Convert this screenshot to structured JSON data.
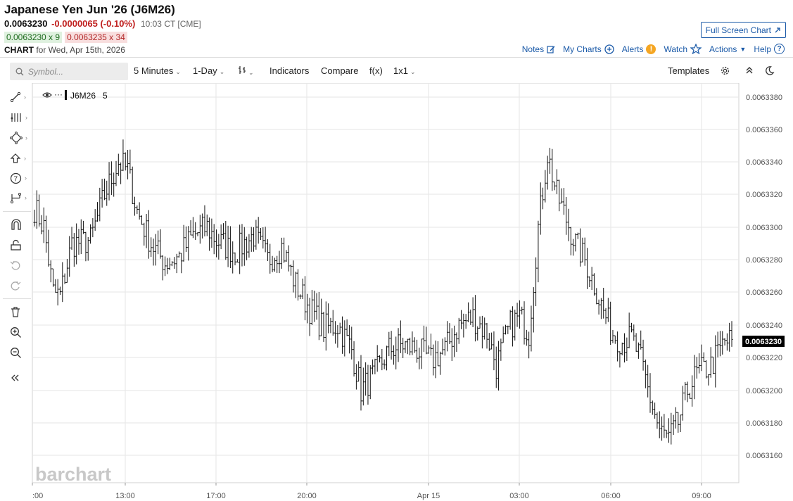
{
  "header": {
    "title": "Japanese Yen Jun '26 (J6M26)",
    "last": "0.0063230",
    "change": "-0.0000065 (-0.10%)",
    "time": "10:03 CT [CME]",
    "bid": "0.0063230 x 9",
    "ask": "0.0063235 x 34",
    "chart_label": "CHART",
    "chart_for": "for Wed, Apr 15th, 2026"
  },
  "actions": {
    "full_screen": "Full Screen Chart",
    "notes": "Notes",
    "my_charts": "My Charts",
    "alerts": "Alerts",
    "watch": "Watch",
    "actions": "Actions",
    "help": "Help"
  },
  "toolbar": {
    "symbol_placeholder": "Symbol...",
    "interval": "5 Minutes",
    "range": "1-Day",
    "indicators": "Indicators",
    "compare": "Compare",
    "fx": "f(x)",
    "layout": "1x1",
    "templates": "Templates"
  },
  "legend": {
    "symbol": "J6M26",
    "interval": "5"
  },
  "watermark": "barchart",
  "colors": {
    "link": "#1b5aa8",
    "negative": "#c0201f",
    "bid_bg": "#dff1df",
    "ask_bg": "#f8dede",
    "bars": "#111111",
    "last_price_tag": "#000000"
  },
  "icons": [
    "search-icon",
    "chart-type-icon",
    "gear-icon",
    "collapse-icon",
    "dark-mode-icon",
    "line-tool-icon",
    "fib-tool-icon",
    "shape-tool-icon",
    "arrow-tool-icon",
    "counter-tool-icon",
    "measure-tool-icon",
    "magnet-icon",
    "lock-icon",
    "undo-icon",
    "redo-icon",
    "trash-icon",
    "zoom-in-icon",
    "zoom-out-icon",
    "collapse-panel-icon"
  ],
  "chart_data": {
    "type": "ohlc",
    "symbol": "J6M26",
    "interval": "5 Minutes",
    "x_ticks": [
      ":00",
      "13:00",
      "17:00",
      "20:00",
      "Apr 15",
      "03:00",
      "06:00",
      "09:00"
    ],
    "y_ticks": [
      "0.0063380",
      "0.0063360",
      "0.0063340",
      "0.0063320",
      "0.0063300",
      "0.0063280",
      "0.0063260",
      "0.0063240",
      "0.0063220",
      "0.0063200",
      "0.0063180",
      "0.0063160"
    ],
    "ylim": [
      0.0063148,
      0.0063385
    ],
    "last_price": "0.0063230",
    "grid": true,
    "anchors": [
      [
        0,
        0.0063312
      ],
      [
        4,
        0.00633
      ],
      [
        8,
        0.006326
      ],
      [
        11,
        0.0063258
      ],
      [
        16,
        0.006329
      ],
      [
        24,
        0.0063292
      ],
      [
        30,
        0.006332
      ],
      [
        36,
        0.006334
      ],
      [
        40,
        0.0063335
      ],
      [
        44,
        0.006331
      ],
      [
        50,
        0.006329
      ],
      [
        56,
        0.0063278
      ],
      [
        62,
        0.0063282
      ],
      [
        68,
        0.0063295
      ],
      [
        74,
        0.00633
      ],
      [
        78,
        0.0063292
      ],
      [
        86,
        0.0063285
      ],
      [
        94,
        0.0063295
      ],
      [
        100,
        0.006328
      ],
      [
        106,
        0.0063288
      ],
      [
        112,
        0.0063265
      ],
      [
        118,
        0.006325
      ],
      [
        124,
        0.0063238
      ],
      [
        130,
        0.006324
      ],
      [
        136,
        0.0063225
      ],
      [
        140,
        0.00632
      ],
      [
        146,
        0.006321
      ],
      [
        152,
        0.0063225
      ],
      [
        158,
        0.0063228
      ],
      [
        164,
        0.0063225
      ],
      [
        170,
        0.0063218
      ],
      [
        176,
        0.0063225
      ],
      [
        182,
        0.006324
      ],
      [
        188,
        0.0063245
      ],
      [
        194,
        0.0063235
      ],
      [
        198,
        0.0063215
      ],
      [
        204,
        0.006324
      ],
      [
        208,
        0.0063245
      ],
      [
        212,
        0.0063235
      ],
      [
        216,
        0.00633
      ],
      [
        220,
        0.0063345
      ],
      [
        224,
        0.006332
      ],
      [
        228,
        0.0063305
      ],
      [
        232,
        0.006329
      ],
      [
        236,
        0.006328
      ],
      [
        240,
        0.0063265
      ],
      [
        244,
        0.0063248
      ],
      [
        248,
        0.0063235
      ],
      [
        252,
        0.006323
      ],
      [
        256,
        0.0063232
      ],
      [
        260,
        0.0063218
      ],
      [
        264,
        0.0063195
      ],
      [
        268,
        0.0063175
      ],
      [
        272,
        0.006317
      ],
      [
        276,
        0.006318
      ],
      [
        280,
        0.00632
      ],
      [
        284,
        0.006321
      ],
      [
        290,
        0.0063215
      ],
      [
        296,
        0.006323
      ],
      [
        299,
        0.006323
      ]
    ]
  }
}
